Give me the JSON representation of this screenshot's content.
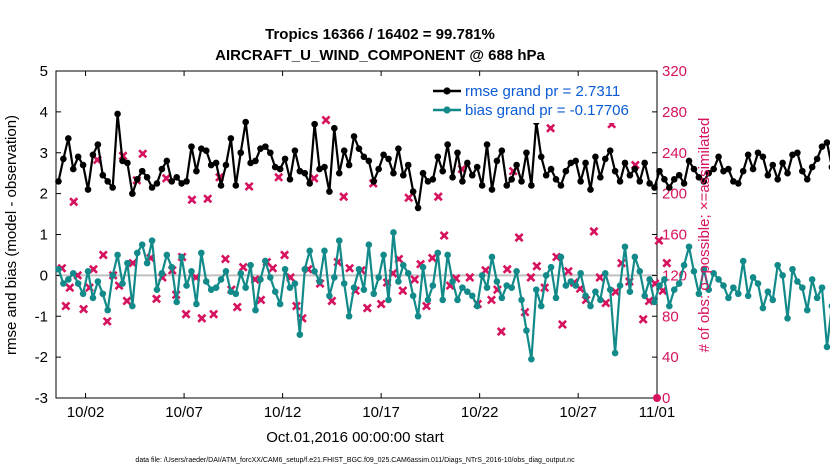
{
  "chart_data": {
    "type": "line",
    "title_line1": "Tropics 16366 / 16402 = 99.781%",
    "title_line2": "AIRCRAFT_U_WIND_COMPONENT @ 688 hPa",
    "ylabel_left": "rmse and bias (model - observation)",
    "ylabel_right": "# of obs: o=possible; ×=assimilated",
    "xlabel": "Oct.01,2016 00:00:00 start",
    "footer": "data file: /Users/raeder/DAI/ATM_forcXX/CAM6_setup/f.e21.FHIST_BGC.f09_025.CAM6assim.011/Diags_NTrS_2016-10/obs_diag_output.nc",
    "ylim_left": [
      -3,
      5
    ],
    "ylim_right": [
      0,
      320
    ],
    "xlim": [
      0.5,
      31
    ],
    "left_ticks": [
      "5",
      "4",
      "3",
      "2",
      "1",
      "0",
      "-1",
      "-2",
      "-3"
    ],
    "left_tick_values": [
      5,
      4,
      3,
      2,
      1,
      0,
      -1,
      -2,
      -3
    ],
    "right_ticks": [
      "320",
      "280",
      "240",
      "200",
      "160",
      "120",
      "80",
      "40",
      "0"
    ],
    "right_tick_values": [
      320,
      280,
      240,
      200,
      160,
      120,
      80,
      40,
      0
    ],
    "x_ticks": [
      "10/02",
      "10/07",
      "10/12",
      "10/17",
      "10/22",
      "10/27",
      "11/01"
    ],
    "x_tick_values": [
      2,
      7,
      12,
      17,
      22,
      27,
      32
    ],
    "zero_line": 0,
    "legend": [
      "rmse grand pr = 2.7311",
      "bias grand pr = -0.17706"
    ],
    "colors": {
      "rmse": "#000000",
      "bias": "#138a8a",
      "obs": "#d6135f",
      "zero": "#c0c0c0",
      "legend_text": "#0a5ad6"
    },
    "x_start": 0.625,
    "x_step": 0.25,
    "series": [
      {
        "name": "rmse",
        "axis": "left",
        "values": [
          2.3,
          2.85,
          3.35,
          2.6,
          2.9,
          2.7,
          2.1,
          2.95,
          3.2,
          2.45,
          2.3,
          2.15,
          3.95,
          2.8,
          2.75,
          2.0,
          2.35,
          2.55,
          2.4,
          2.15,
          2.25,
          2.6,
          2.8,
          2.3,
          2.4,
          2.25,
          2.3,
          3.15,
          2.55,
          3.1,
          3.05,
          2.7,
          2.75,
          2.2,
          2.7,
          3.35,
          2.2,
          3.0,
          3.75,
          2.75,
          2.8,
          3.1,
          3.15,
          3.0,
          2.65,
          2.6,
          2.85,
          2.35,
          3.05,
          2.55,
          2.5,
          2.25,
          3.7,
          2.6,
          2.65,
          2.05,
          3.6,
          2.5,
          3.05,
          2.7,
          3.4,
          3.1,
          2.9,
          2.8,
          2.3,
          2.6,
          2.95,
          2.85,
          2.5,
          3.1,
          2.45,
          2.7,
          2.05,
          1.65,
          2.5,
          2.3,
          2.35,
          2.9,
          2.55,
          3.2,
          2.4,
          3.0,
          2.3,
          2.75,
          2.45,
          2.65,
          2.2,
          3.2,
          2.1,
          2.8,
          3.05,
          2.2,
          2.35,
          2.7,
          2.3,
          3.0,
          2.2,
          3.75,
          2.9,
          2.45,
          2.6,
          2.35,
          2.2,
          2.55,
          2.75,
          2.8,
          2.3,
          2.75,
          2.1,
          2.9,
          2.4,
          2.85,
          3.05,
          2.55,
          2.3,
          2.75,
          2.45,
          2.6,
          2.3,
          2.75,
          2.25,
          2.15,
          2.55,
          2.35,
          2.15,
          2.35,
          2.45,
          2.25,
          2.8,
          2.6,
          2.4,
          2.3,
          2.5,
          2.6,
          2.9,
          2.55,
          2.6,
          2.3,
          2.25,
          2.55,
          2.95,
          2.6,
          3.0,
          2.9,
          2.45,
          2.7,
          2.35,
          2.75,
          2.5,
          2.95,
          3.0,
          2.55,
          2.35,
          2.65,
          2.85,
          3.15,
          3.25,
          2.65,
          2.4,
          2.85,
          3.3,
          2.85
        ]
      },
      {
        "name": "bias",
        "axis": "left",
        "values": [
          0.15,
          -0.2,
          -0.1,
          0.05,
          -0.2,
          -0.45,
          0.1,
          -0.55,
          -0.15,
          -0.45,
          -0.85,
          0.0,
          0.5,
          -0.2,
          0.3,
          -0.75,
          0.55,
          0.75,
          0.3,
          0.85,
          -0.35,
          0.05,
          0.5,
          0.2,
          -0.65,
          0.45,
          -0.25,
          0.1,
          -0.7,
          0.55,
          -0.15,
          -0.35,
          -0.3,
          -0.1,
          0.1,
          -0.4,
          -0.45,
          0.05,
          -0.3,
          0.25,
          -0.85,
          -0.1,
          0.35,
          -0.05,
          -0.4,
          -0.7,
          0.15,
          -0.3,
          -0.2,
          -1.45,
          0.15,
          0.6,
          0.1,
          -0.15,
          0.6,
          -0.5,
          -0.05,
          0.85,
          -0.2,
          -1.0,
          -0.3,
          0.15,
          -0.35,
          0.75,
          -0.45,
          -0.05,
          0.5,
          -0.6,
          1.05,
          -0.15,
          0.25,
          0.05,
          -0.5,
          -1.0,
          0.2,
          -0.6,
          -0.25,
          0.55,
          -0.6,
          0.5,
          -0.15,
          -0.6,
          -0.3,
          -0.4,
          -0.5,
          -0.75,
          0.0,
          -0.3,
          0.45,
          -0.15,
          -0.55,
          -0.25,
          -0.3,
          0.1,
          -0.6,
          -1.35,
          -2.05,
          -0.35,
          -0.75,
          0.0,
          0.2,
          -0.55,
          0.45,
          -0.25,
          -0.15,
          -0.25,
          0.05,
          -0.5,
          -0.75,
          -0.4,
          -0.6,
          0.05,
          -0.35,
          -1.9,
          -0.25,
          0.7,
          -0.4,
          0.45,
          0.1,
          -0.5,
          -0.1,
          -0.65,
          -0.25,
          -0.1,
          -0.75,
          -0.35,
          -0.2,
          0.25,
          0.7,
          0.1,
          -0.45,
          0.15,
          -0.35,
          0.05,
          -0.1,
          -0.25,
          -0.55,
          -0.3,
          -0.45,
          0.35,
          -0.5,
          -0.05,
          -0.2,
          -0.8,
          -0.4,
          -0.6,
          0.25,
          0.0,
          -1.05,
          0.15,
          -0.15,
          -0.3,
          -0.85,
          -0.1,
          -0.55,
          -0.3,
          -1.75,
          -0.75,
          -0.6,
          -0.9,
          -0.2,
          0.0,
          -0.45,
          0.3
        ]
      },
      {
        "name": "obs_assimilated",
        "axis": "right",
        "points": [
          [
            0.8,
            127
          ],
          [
            1.0,
            90
          ],
          [
            1.2,
            108
          ],
          [
            1.4,
            192
          ],
          [
            1.6,
            120
          ],
          [
            1.9,
            87
          ],
          [
            2.2,
            108
          ],
          [
            2.4,
            126
          ],
          [
            2.6,
            233
          ],
          [
            2.9,
            140
          ],
          [
            3.1,
            75
          ],
          [
            3.4,
            120
          ],
          [
            3.7,
            110
          ],
          [
            3.9,
            237
          ],
          [
            4.1,
            95
          ],
          [
            4.4,
            132
          ],
          [
            4.6,
            213
          ],
          [
            4.9,
            239
          ],
          [
            5.3,
            137
          ],
          [
            5.6,
            97
          ],
          [
            5.9,
            118
          ],
          [
            6.1,
            215
          ],
          [
            6.4,
            125
          ],
          [
            6.6,
            101
          ],
          [
            6.9,
            138
          ],
          [
            7.1,
            82
          ],
          [
            7.4,
            194
          ],
          [
            7.6,
            118
          ],
          [
            7.9,
            78
          ],
          [
            8.2,
            195
          ],
          [
            8.5,
            82
          ],
          [
            8.8,
            216
          ],
          [
            9.1,
            136
          ],
          [
            9.4,
            106
          ],
          [
            9.7,
            89
          ],
          [
            10.0,
            128
          ],
          [
            10.3,
            207
          ],
          [
            10.6,
            116
          ],
          [
            10.9,
            96
          ],
          [
            11.2,
            133
          ],
          [
            11.5,
            127
          ],
          [
            11.8,
            216
          ],
          [
            12.1,
            140
          ],
          [
            12.4,
            118
          ],
          [
            12.7,
            90
          ],
          [
            13.0,
            78
          ],
          [
            13.3,
            126
          ],
          [
            13.6,
            215
          ],
          [
            13.9,
            112
          ],
          [
            14.2,
            272
          ],
          [
            14.5,
            95
          ],
          [
            14.8,
            133
          ],
          [
            15.1,
            197
          ],
          [
            15.4,
            127
          ],
          [
            15.7,
            105
          ],
          [
            16.0,
            125
          ],
          [
            16.3,
            88
          ],
          [
            16.6,
            210
          ],
          [
            17.0,
            92
          ],
          [
            17.3,
            113
          ],
          [
            17.6,
            122
          ],
          [
            17.9,
            136
          ],
          [
            18.1,
            105
          ],
          [
            18.4,
            196
          ],
          [
            18.7,
            116
          ],
          [
            19.0,
            131
          ],
          [
            19.3,
            90
          ],
          [
            19.6,
            137
          ],
          [
            19.9,
            197
          ],
          [
            20.2,
            159
          ],
          [
            20.5,
            110
          ],
          [
            20.8,
            117
          ],
          [
            21.1,
            224
          ],
          [
            21.5,
            118
          ],
          [
            21.9,
            92
          ],
          [
            22.3,
            125
          ],
          [
            22.6,
            96
          ],
          [
            22.9,
            106
          ],
          [
            23.1,
            65
          ],
          [
            23.4,
            126
          ],
          [
            23.7,
            222
          ],
          [
            24.0,
            157
          ],
          [
            24.3,
            84
          ],
          [
            24.6,
            118
          ],
          [
            24.9,
            129
          ],
          [
            25.3,
            108
          ],
          [
            25.6,
            264
          ],
          [
            25.9,
            138
          ],
          [
            26.2,
            72
          ],
          [
            26.5,
            124
          ],
          [
            26.8,
            113
          ],
          [
            27.1,
            107
          ],
          [
            27.4,
            96
          ],
          [
            27.8,
            163
          ],
          [
            28.1,
            118
          ],
          [
            28.4,
            93
          ],
          [
            28.7,
            268
          ],
          [
            28.9,
            104
          ],
          [
            29.2,
            132
          ],
          [
            29.6,
            114
          ],
          [
            29.9,
            228
          ],
          [
            30.3,
            77
          ],
          [
            30.6,
            95
          ],
          [
            30.9,
            112
          ],
          [
            31.1,
            154
          ],
          [
            31.3,
            105
          ],
          [
            31.5,
            132
          ]
        ]
      }
    ]
  }
}
